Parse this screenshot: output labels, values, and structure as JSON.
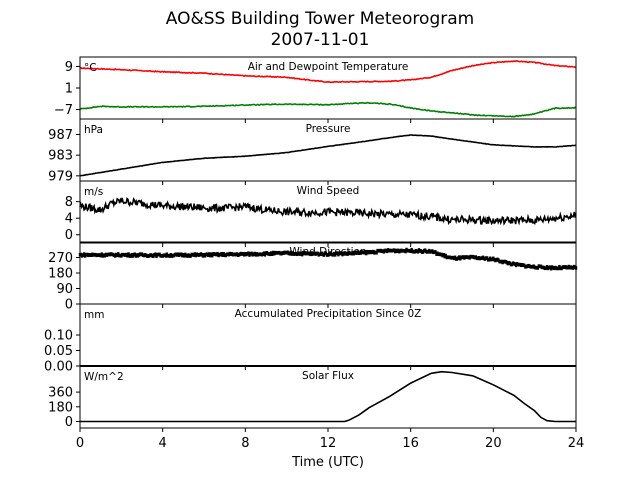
{
  "title": "AO&SS Building Tower Meteorogram",
  "subtitle": "2007-11-01",
  "chart_data": [
    {
      "type": "line",
      "title": "Air and Dewpoint Temperature",
      "unit": "°C",
      "x_range": [
        0,
        24
      ],
      "ylim": [
        -10.5,
        12.5
      ],
      "yticks": [
        9,
        1,
        -7
      ],
      "series": [
        {
          "color": "#ff0000",
          "x": [
            0,
            2,
            4,
            6,
            8,
            10,
            11,
            12,
            13,
            14,
            15,
            16,
            17,
            18,
            19,
            20,
            21,
            22,
            23,
            24
          ],
          "values": [
            8.4,
            7.8,
            7.0,
            6.5,
            5.5,
            5.0,
            4.0,
            3.2,
            3.3,
            3.4,
            3.5,
            4.0,
            5.0,
            7.5,
            9.3,
            10.4,
            11.0,
            10.5,
            9.3,
            8.8
          ]
        },
        {
          "color": "#008000",
          "x": [
            0,
            1,
            2,
            4,
            6,
            8,
            10,
            12,
            13,
            14,
            15,
            16,
            17,
            18,
            19,
            20,
            21,
            22,
            23,
            24
          ],
          "values": [
            -6.8,
            -5.8,
            -6.0,
            -6.0,
            -5.8,
            -5.3,
            -5.0,
            -5.2,
            -4.8,
            -4.5,
            -5.0,
            -6.4,
            -7.5,
            -8.2,
            -9.0,
            -9.3,
            -9.6,
            -8.6,
            -6.5,
            -6.3
          ]
        }
      ]
    },
    {
      "type": "line",
      "title": "Pressure",
      "unit": "hPa",
      "x_range": [
        0,
        24
      ],
      "ylim": [
        978,
        990
      ],
      "yticks": [
        987,
        983,
        979
      ],
      "series": [
        {
          "color": "#000000",
          "x": [
            0,
            2,
            4,
            6,
            8,
            10,
            12,
            14,
            15,
            16,
            17,
            18,
            20,
            22,
            23,
            24
          ],
          "values": [
            979.0,
            980.3,
            981.6,
            982.4,
            982.8,
            983.5,
            984.7,
            985.8,
            986.4,
            986.9,
            986.7,
            986.1,
            985.0,
            984.6,
            984.6,
            984.9
          ]
        }
      ]
    },
    {
      "type": "line",
      "title": "Wind Speed",
      "unit": "m/s",
      "x_range": [
        0,
        24
      ],
      "ylim": [
        -2,
        13
      ],
      "yticks": [
        8,
        4,
        0
      ],
      "series": [
        {
          "color": "#000000",
          "x": [
            0,
            1,
            1.5,
            2,
            3,
            4,
            5,
            6,
            7,
            8,
            9,
            10,
            11,
            12,
            13,
            14,
            15,
            16,
            17,
            18,
            19,
            20,
            21,
            22,
            23,
            24
          ],
          "values": [
            7.0,
            6.0,
            7.5,
            8.2,
            7.6,
            7.0,
            6.8,
            6.5,
            6.4,
            6.8,
            6.0,
            5.5,
            5.4,
            5.5,
            5.3,
            5.1,
            4.9,
            4.8,
            4.4,
            3.6,
            3.6,
            3.4,
            3.5,
            3.5,
            4.0,
            4.8
          ]
        }
      ]
    },
    {
      "type": "scatter",
      "title": "Wind Direction",
      "x_range": [
        0,
        24
      ],
      "ylim": [
        0,
        360
      ],
      "yticks": [
        270,
        180,
        90,
        0
      ],
      "series": [
        {
          "color": "#000000",
          "x": [
            0,
            2,
            4,
            6,
            8,
            10,
            11,
            12,
            13,
            14,
            15,
            16,
            17,
            18,
            19,
            20,
            21,
            22,
            23,
            24
          ],
          "values": [
            285,
            285,
            283,
            285,
            289,
            295,
            292,
            290,
            294,
            300,
            310,
            310,
            305,
            265,
            270,
            260,
            230,
            215,
            210,
            212
          ]
        }
      ]
    },
    {
      "type": "line",
      "title": "Accumulated Precipitation Since 0Z",
      "unit": "mm",
      "x_range": [
        0,
        24
      ],
      "ylim": [
        0,
        0.2
      ],
      "yticks": [
        "0.10",
        "0.05",
        "0.00"
      ],
      "tick_values": [
        0.1,
        0.05,
        0.0
      ],
      "series": [
        {
          "color": "#000000",
          "x": [
            0,
            24
          ],
          "values": [
            0,
            0
          ]
        }
      ]
    },
    {
      "type": "line",
      "title": "Solar Flux",
      "unit": "W/m^2",
      "x_range": [
        0,
        24
      ],
      "ylim": [
        -80,
        680
      ],
      "yticks": [
        360,
        180,
        0
      ],
      "series": [
        {
          "color": "#000000",
          "x": [
            0,
            12.8,
            13.0,
            13.5,
            14,
            15,
            16,
            17,
            17.5,
            18,
            19,
            20,
            21,
            21.5,
            22,
            22.3,
            22.6,
            23,
            24
          ],
          "values": [
            0,
            0,
            15,
            80,
            170,
            310,
            470,
            590,
            610,
            600,
            560,
            450,
            320,
            220,
            130,
            50,
            10,
            0,
            0
          ]
        }
      ]
    }
  ],
  "xaxis": {
    "label": "Time (UTC)",
    "ticks": [
      0,
      4,
      8,
      12,
      16,
      20,
      24
    ]
  }
}
